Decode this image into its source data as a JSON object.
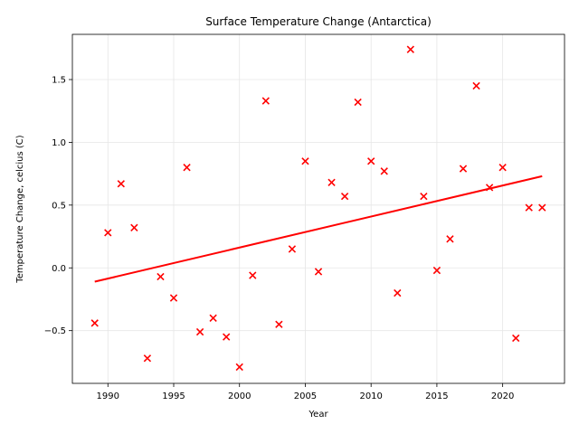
{
  "chart_data": {
    "type": "scatter",
    "title": "Surface Temperature Change (Antarctica)",
    "xlabel": "Year",
    "ylabel": "Temperature Change, celcius (C)",
    "xlim": [
      1987.3,
      2024.7
    ],
    "ylim": [
      -0.92,
      1.86
    ],
    "xticks": [
      1990,
      1995,
      2000,
      2005,
      2010,
      2015,
      2020
    ],
    "yticks": [
      -0.5,
      0.0,
      0.5,
      1.0,
      1.5
    ],
    "ytick_labels": [
      "−0.5",
      "0.0",
      "0.5",
      "1.0",
      "1.5"
    ],
    "grid": true,
    "series": [
      {
        "marker": "x",
        "color": "#ff0000",
        "x": [
          1989,
          1990,
          1991,
          1992,
          1993,
          1994,
          1995,
          1996,
          1997,
          1998,
          1999,
          2000,
          2001,
          2002,
          2003,
          2004,
          2005,
          2006,
          2007,
          2008,
          2009,
          2010,
          2011,
          2012,
          2013,
          2014,
          2015,
          2016,
          2017,
          2018,
          2019,
          2020,
          2021,
          2022,
          2023
        ],
        "y": [
          -0.44,
          0.28,
          0.67,
          0.32,
          -0.72,
          -0.07,
          -0.24,
          0.8,
          -0.51,
          -0.4,
          -0.55,
          -0.79,
          -0.06,
          1.33,
          -0.45,
          0.15,
          0.85,
          -0.03,
          0.68,
          0.57,
          1.32,
          0.85,
          0.77,
          -0.2,
          1.74,
          0.57,
          -0.02,
          0.23,
          0.79,
          1.45,
          0.64,
          0.8,
          -0.56,
          0.48,
          0.48
        ]
      }
    ],
    "trendline": {
      "color": "#ff0000",
      "x": [
        1989,
        2023
      ],
      "y": [
        -0.11,
        0.73
      ]
    }
  }
}
